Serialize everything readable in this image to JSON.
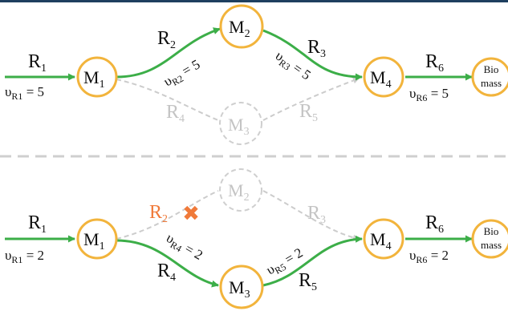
{
  "colors": {
    "active": "#3cae48",
    "inactive": "#cccccc",
    "node_stroke": "#f2b43c",
    "node_inactive_stroke": "#cfcfcf",
    "text": "#111111",
    "text_inactive": "#bdbdbd",
    "knockout": "#f07a3a",
    "divider": "#cfcfcf",
    "top_bar": "#1e3f5f"
  },
  "top": {
    "nodes": {
      "m1": {
        "main": "M",
        "sub": "1"
      },
      "m2": {
        "main": "M",
        "sub": "2"
      },
      "m3": {
        "main": "M",
        "sub": "3"
      },
      "m4": {
        "main": "M",
        "sub": "4"
      },
      "bio_line1": "Bio",
      "bio_line2": "mass"
    },
    "reactions": {
      "r1": {
        "main": "R",
        "sub": "1"
      },
      "r2": {
        "main": "R",
        "sub": "2"
      },
      "r3": {
        "main": "R",
        "sub": "3"
      },
      "r4": {
        "main": "R",
        "sub": "4"
      },
      "r5": {
        "main": "R",
        "sub": "5"
      },
      "r6": {
        "main": "R",
        "sub": "6"
      }
    },
    "rates": {
      "r1": {
        "prefix": "υ",
        "sub": "R1",
        "value": " = 5"
      },
      "r2": {
        "prefix": "υ",
        "sub": "R2",
        "value": " = 5"
      },
      "r3": {
        "prefix": "υ",
        "sub": "R3",
        "value": " = 5"
      },
      "r6": {
        "prefix": "υ",
        "sub": "R6",
        "value": " = 5"
      }
    }
  },
  "bottom": {
    "nodes": {
      "m1": {
        "main": "M",
        "sub": "1"
      },
      "m2": {
        "main": "M",
        "sub": "2"
      },
      "m3": {
        "main": "M",
        "sub": "3"
      },
      "m4": {
        "main": "M",
        "sub": "4"
      },
      "bio_line1": "Bio",
      "bio_line2": "mass"
    },
    "reactions": {
      "r1": {
        "main": "R",
        "sub": "1"
      },
      "r2": {
        "main": "R",
        "sub": "2"
      },
      "r3": {
        "main": "R",
        "sub": "3"
      },
      "r4": {
        "main": "R",
        "sub": "4"
      },
      "r5": {
        "main": "R",
        "sub": "5"
      },
      "r6": {
        "main": "R",
        "sub": "6"
      }
    },
    "rates": {
      "r1": {
        "prefix": "υ",
        "sub": "R1",
        "value": " = 2"
      },
      "r4": {
        "prefix": "υ",
        "sub": "R4",
        "value": " = 2"
      },
      "r5": {
        "prefix": "υ",
        "sub": "R5",
        "value": " = 2"
      },
      "r6": {
        "prefix": "υ",
        "sub": "R6",
        "value": " = 2"
      }
    },
    "knockout_mark": "✖"
  }
}
